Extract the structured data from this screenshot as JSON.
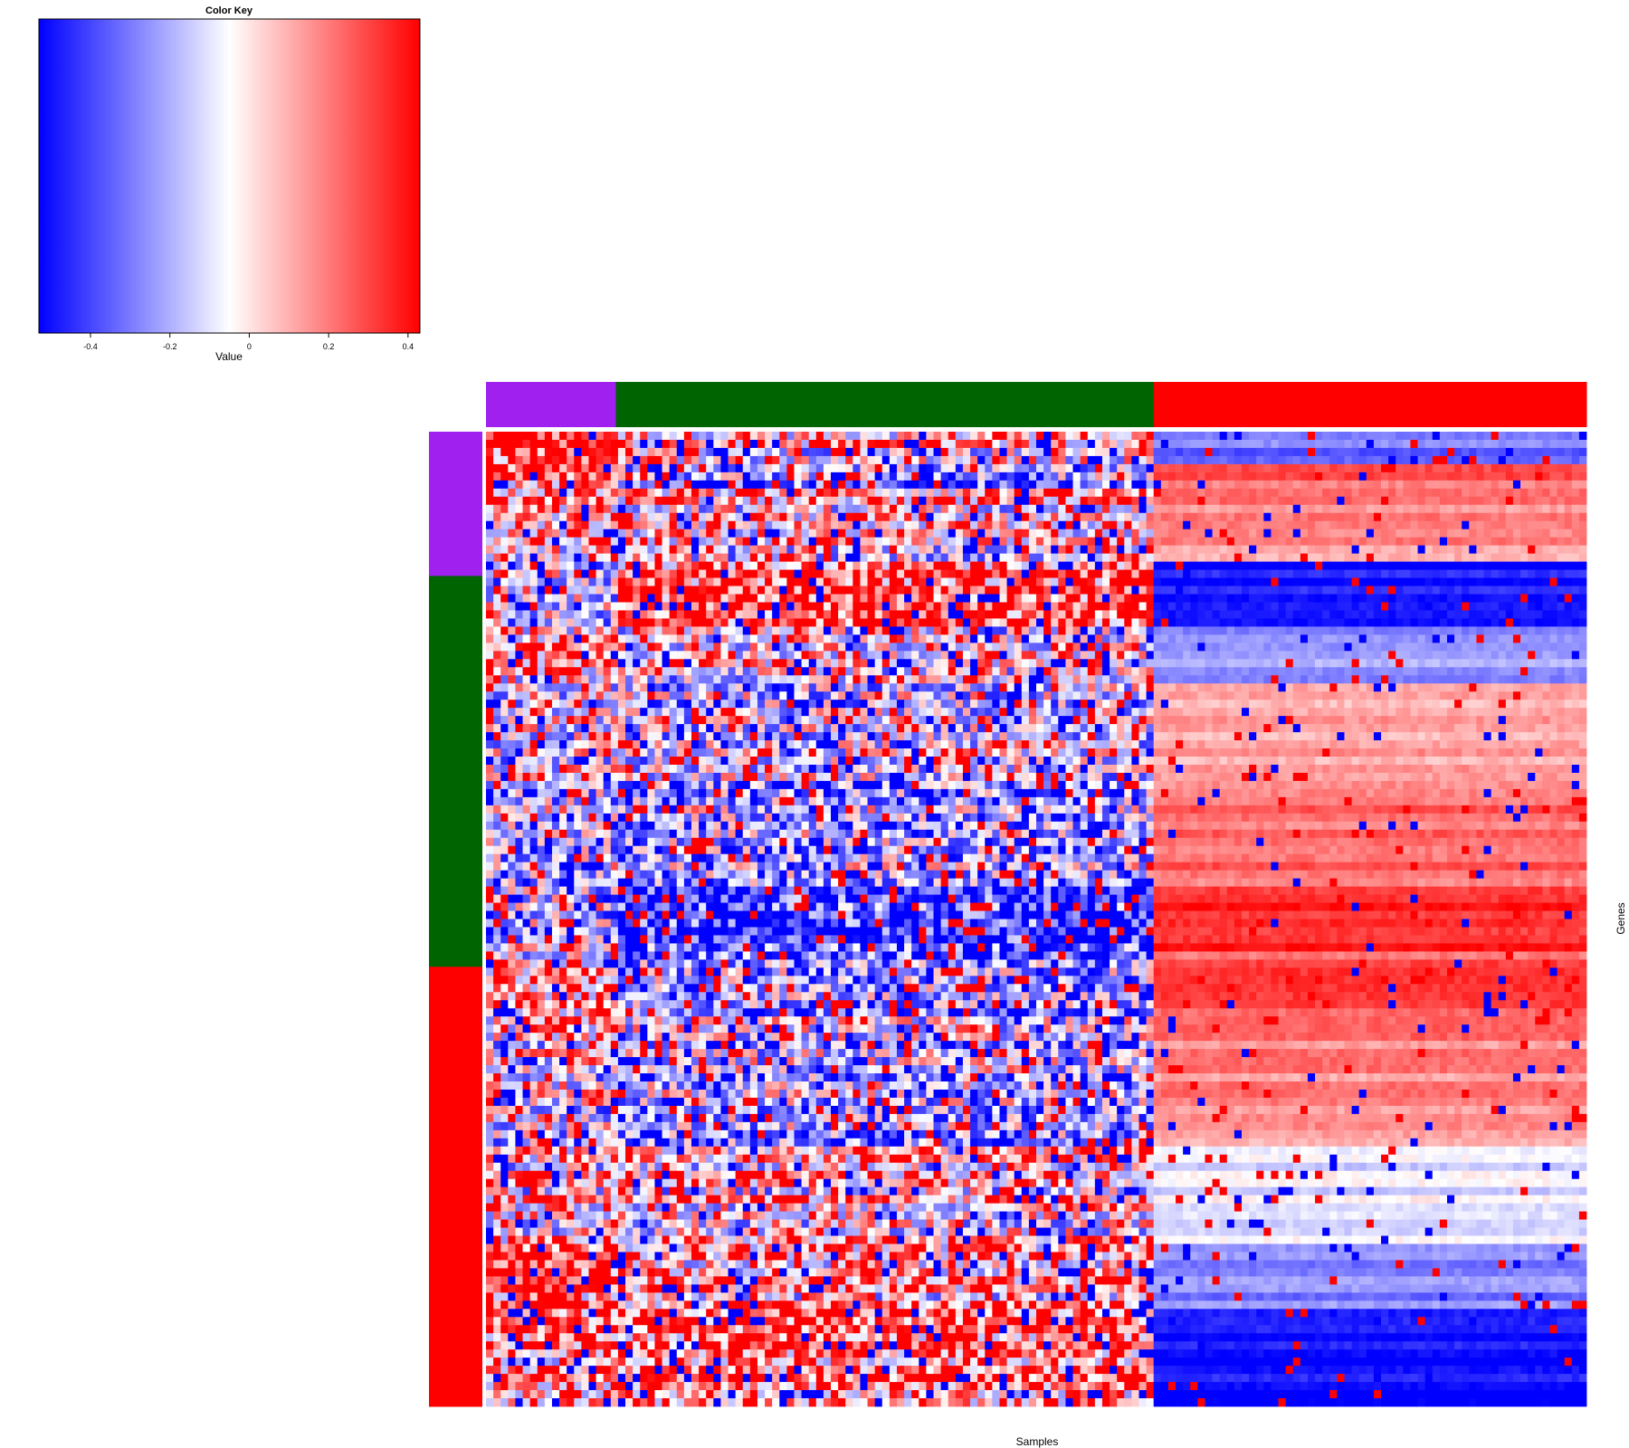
{
  "chart_data": {
    "type": "heatmap",
    "xlabel": "Samples",
    "ylabel": "Genes",
    "legend": {
      "title": "Color Key",
      "xlabel": "Value",
      "range": [
        -0.53,
        0.43
      ],
      "ticks": [
        -0.4,
        -0.2,
        0,
        0.2,
        0.4
      ],
      "tick_labels": [
        "-0.4",
        "-0.2",
        "0",
        "0.2",
        "0.4"
      ],
      "colors": {
        "low": "#0000ff",
        "mid": "#ffffff",
        "high": "#ff0000"
      }
    },
    "column_groups": [
      {
        "color": "#a020f0",
        "fraction": 0.118
      },
      {
        "color": "#006400",
        "fraction": 0.489
      },
      {
        "color": "#ff0000",
        "fraction": 0.393
      }
    ],
    "row_groups": [
      {
        "color": "#a020f0",
        "fraction": 0.148
      },
      {
        "color": "#006400",
        "fraction": 0.401
      },
      {
        "color": "#ff0000",
        "fraction": 0.451
      }
    ],
    "approx_grid": {
      "rows": 120,
      "cols": 150
    },
    "row_block_values": [
      {
        "from": 0.0,
        "to": 0.03,
        "values": [
          0.35,
          0.05,
          -0.3
        ]
      },
      {
        "from": 0.03,
        "to": 0.06,
        "values": [
          0.25,
          -0.3,
          0.25
        ]
      },
      {
        "from": 0.06,
        "to": 0.13,
        "values": [
          0.1,
          0.05,
          0.2
        ]
      },
      {
        "from": 0.13,
        "to": 0.2,
        "values": [
          -0.1,
          0.3,
          -0.5
        ]
      },
      {
        "from": 0.2,
        "to": 0.26,
        "values": [
          0.15,
          0.05,
          -0.2
        ]
      },
      {
        "from": 0.26,
        "to": 0.36,
        "values": [
          -0.05,
          -0.1,
          0.15
        ]
      },
      {
        "from": 0.36,
        "to": 0.47,
        "values": [
          -0.1,
          -0.15,
          0.25
        ]
      },
      {
        "from": 0.47,
        "to": 0.53,
        "values": [
          -0.05,
          -0.35,
          0.4
        ]
      },
      {
        "from": 0.53,
        "to": 0.6,
        "values": [
          0.1,
          -0.25,
          0.3
        ]
      },
      {
        "from": 0.6,
        "to": 0.73,
        "values": [
          -0.05,
          -0.15,
          0.2
        ]
      },
      {
        "from": 0.73,
        "to": 0.83,
        "values": [
          0.05,
          0.05,
          -0.05
        ]
      },
      {
        "from": 0.83,
        "to": 0.9,
        "values": [
          0.3,
          0.1,
          -0.25
        ]
      },
      {
        "from": 0.9,
        "to": 1.0,
        "values": [
          0.2,
          0.25,
          -0.5
        ]
      }
    ]
  }
}
